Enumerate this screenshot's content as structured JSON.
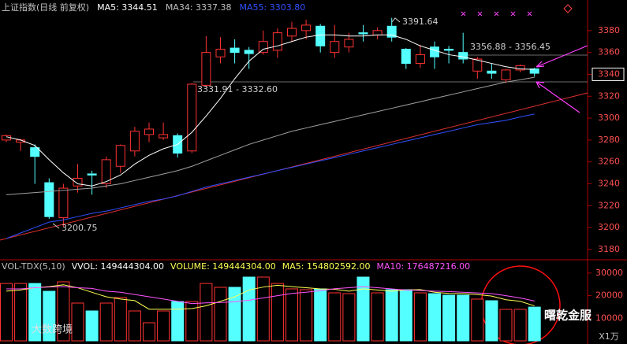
{
  "chart_data": {
    "type": "candlestick",
    "header": [
      {
        "text": "上证指数(日线 前复权)",
        "color": "#c0c0c0"
      },
      {
        "text": "MA5: 3344.51",
        "color": "#ffffff"
      },
      {
        "text": "MA34: 3337.38",
        "color": "#c0c0c0"
      },
      {
        "text": "MA55: 3303.80",
        "color": "#3050ff"
      }
    ],
    "up_color": "#ff3232",
    "down_color": "#54ffff",
    "open": [
      3280,
      3278,
      3273,
      3241,
      3209,
      3238,
      3249,
      3240,
      3256,
      3270,
      3285,
      3282,
      3284,
      3270,
      3330,
      3356,
      3364,
      3362,
      3360,
      3362,
      3375,
      3380,
      3384,
      3360,
      3365,
      3378,
      3376,
      3384,
      3363,
      3350,
      3365,
      3363,
      3360,
      3343,
      3343,
      3335,
      3344,
      3345
    ],
    "high": [
      3285,
      3281,
      3276,
      3245,
      3240,
      3258,
      3252,
      3265,
      3276,
      3292,
      3296,
      3296,
      3286,
      3332,
      3375,
      3374,
      3372,
      3365,
      3380,
      3382,
      3388,
      3390,
      3386,
      3385,
      3378,
      3385,
      3383,
      3391.64,
      3364,
      3367,
      3370,
      3366,
      3378,
      3356,
      3350,
      3345,
      3349,
      3346
    ],
    "low": [
      3278,
      3270,
      3240,
      3208,
      3200.75,
      3232,
      3230,
      3236,
      3250,
      3265,
      3278,
      3280,
      3264,
      3268,
      3328,
      3350,
      3350,
      3345,
      3358,
      3355,
      3370,
      3372,
      3360,
      3355,
      3360,
      3370,
      3372,
      3370,
      3345,
      3346,
      3345,
      3350,
      3350,
      3336,
      3336,
      3332,
      3342,
      3338
    ],
    "close": [
      3284,
      3280,
      3265,
      3210,
      3236,
      3245,
      3248,
      3262,
      3275,
      3288,
      3290,
      3285,
      3268,
      3331,
      3360,
      3363,
      3360,
      3359,
      3370,
      3378,
      3382,
      3385,
      3366,
      3370,
      3372,
      3377,
      3380,
      3374,
      3350,
      3358,
      3356,
      3362,
      3354,
      3354,
      3341,
      3344,
      3348,
      3341
    ],
    "series": [
      {
        "name": "MA5",
        "color": "#ffffff",
        "values": [
          3283,
          3280,
          3275,
          3262,
          3250,
          3240,
          3238,
          3242,
          3248,
          3258,
          3266,
          3272,
          3276,
          3287,
          3302,
          3318,
          3336,
          3352,
          3363,
          3366,
          3370,
          3374,
          3376,
          3376,
          3375,
          3375,
          3376,
          3376,
          3372,
          3366,
          3362,
          3358,
          3356,
          3353,
          3350,
          3347,
          3345,
          3344.51
        ]
      },
      {
        "name": "MA34",
        "color": "#a0a0a0",
        "values": [
          3230,
          3231,
          3232,
          3233,
          3234,
          3235,
          3236,
          3238,
          3240,
          3243,
          3246,
          3249,
          3252,
          3256,
          3261,
          3266,
          3271,
          3276,
          3280,
          3284,
          3288,
          3291,
          3294,
          3297,
          3300,
          3303,
          3306,
          3309,
          3312,
          3315,
          3318,
          3321,
          3324,
          3327,
          3330,
          3333,
          3335,
          3337.38
        ]
      },
      {
        "name": "MA55",
        "color": "#3050ff",
        "values": [
          3190,
          3195,
          3200,
          3205,
          3207,
          3210,
          3213,
          3215,
          3218,
          3221,
          3224,
          3226,
          3229,
          3233,
          3237,
          3240,
          3243,
          3246,
          3249,
          3252,
          3255,
          3258,
          3261,
          3264,
          3267,
          3270,
          3273,
          3276,
          3279,
          3282,
          3285,
          3288,
          3291,
          3294,
          3296,
          3298,
          3301,
          3303.8
        ]
      }
    ],
    "ylim": [
      3172,
      3395
    ],
    "yticks": [
      3180,
      3200,
      3220,
      3240,
      3260,
      3280,
      3300,
      3320,
      3340,
      3360,
      3380
    ],
    "highlight_tick": 3340,
    "annotations": [
      "3391.64",
      "3356.88 - 3356.45",
      "3331.91 - 3332.60",
      "3200.75"
    ],
    "volume": {
      "header": [
        {
          "text": "VOL-TDX(5,10)",
          "color": "#c0c0c0"
        },
        {
          "text": "VVOL: 149444304.00",
          "color": "#ffffff"
        },
        {
          "text": "VOLUME: 149444304.00",
          "color": "#ffff54"
        },
        {
          "text": "MA5: 154802592.00",
          "color": "#ffff54"
        },
        {
          "text": "MA10: 176487216.00",
          "color": "#ff54ff"
        }
      ],
      "values": [
        25400,
        25400,
        25400,
        21950,
        26130,
        16720,
        13240,
        16720,
        19160,
        13240,
        8010,
        13240,
        17420,
        17420,
        25400,
        23690,
        23690,
        28220,
        28220,
        25400,
        23000,
        22650,
        23000,
        21250,
        20900,
        28220,
        21250,
        22650,
        22650,
        21250,
        20900,
        20210,
        20210,
        18470,
        17770,
        13940,
        13940,
        14944
      ],
      "ma5": [
        22000,
        22500,
        23500,
        24000,
        24800,
        23500,
        21500,
        19500,
        18500,
        17800,
        14000,
        14000,
        14000,
        14300,
        15500,
        17500,
        19500,
        22500,
        23800,
        24600,
        24000,
        23500,
        23000,
        22800,
        22000,
        23000,
        22500,
        22000,
        22500,
        22700,
        21500,
        21000,
        20900,
        20500,
        19800,
        18200,
        17500,
        15480
      ],
      "ma10": [
        23000,
        23000,
        23500,
        23800,
        24000,
        23500,
        23200,
        22000,
        21500,
        20500,
        19500,
        18500,
        17500,
        16500,
        16800,
        17000,
        17300,
        18000,
        19000,
        20000,
        21000,
        21500,
        22200,
        23100,
        23500,
        24000,
        23500,
        23000,
        22500,
        22300,
        22000,
        21800,
        21500,
        21200,
        20900,
        20000,
        19000,
        17649
      ],
      "ma5_color": "#ffff54",
      "ma10_color": "#ff54ff",
      "ylim": [
        0,
        34840
      ],
      "yticks": [
        10000,
        20000,
        30000
      ],
      "unit": "X1万"
    },
    "watermarks": [
      "大数跨境",
      "曙乾金服"
    ]
  }
}
